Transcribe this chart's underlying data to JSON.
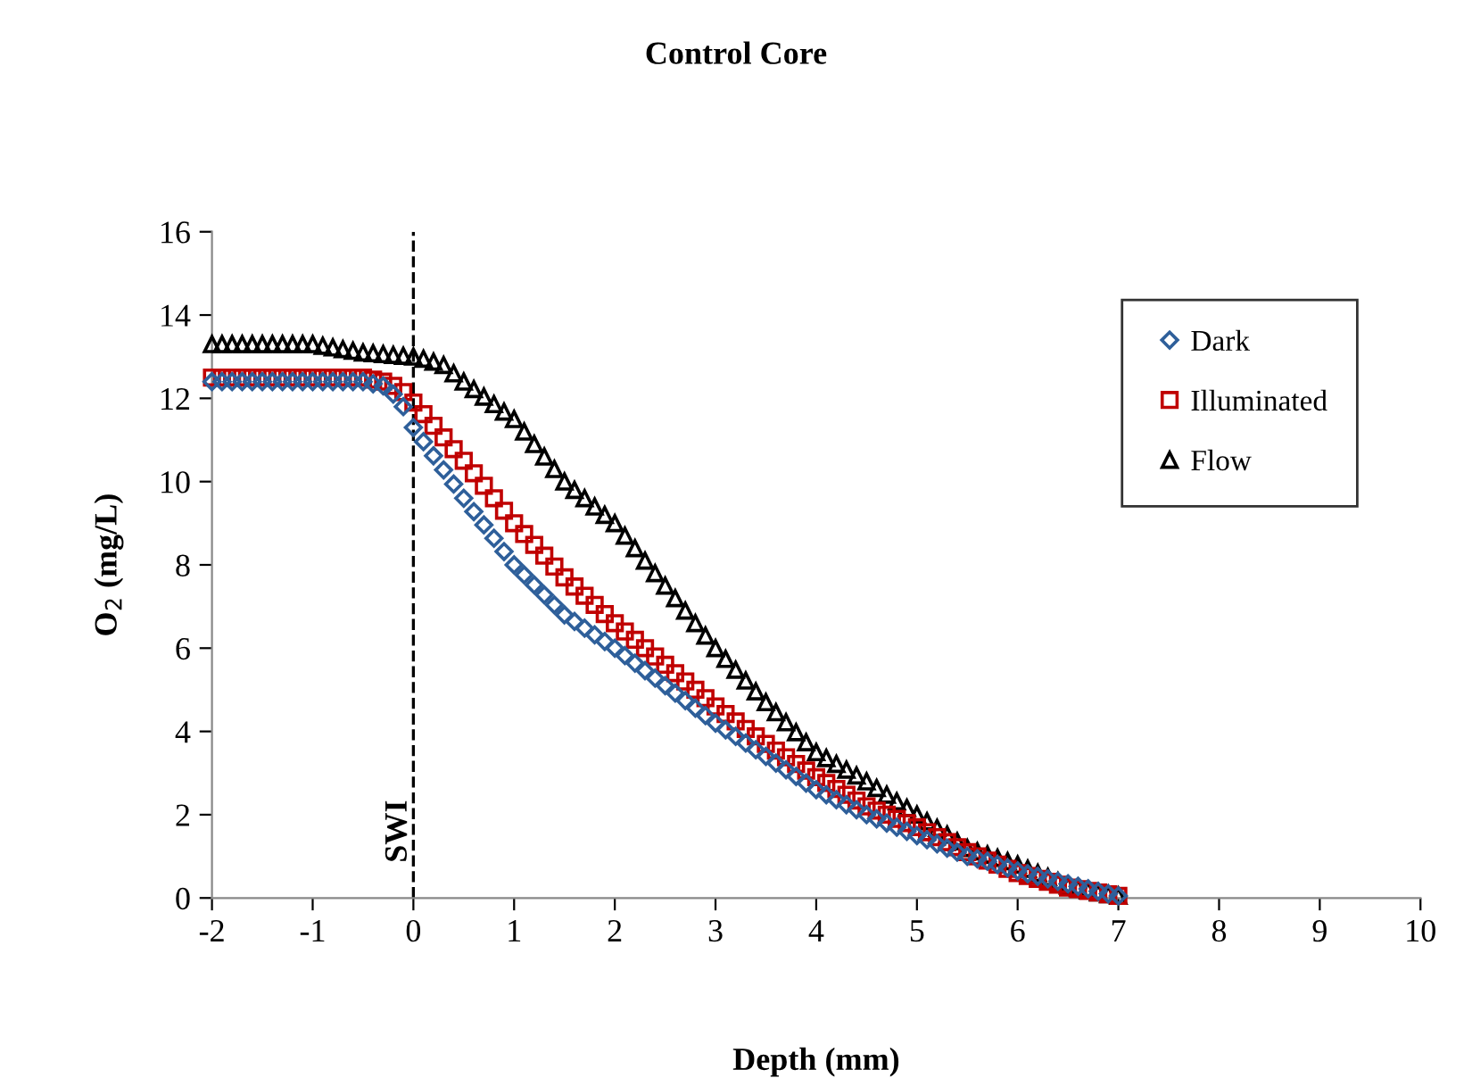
{
  "chart_data": {
    "type": "scatter",
    "title": "Control Core",
    "xlabel": "Depth (mm)",
    "ylabel": "O$_{2}$ (mg/L)",
    "x": [
      -2.0,
      -1.9,
      -1.8,
      -1.7,
      -1.6,
      -1.5,
      -1.4,
      -1.3,
      -1.2,
      -1.1,
      -1.0,
      -0.9,
      -0.8,
      -0.7,
      -0.6,
      -0.5,
      -0.4,
      -0.3,
      -0.2,
      -0.1,
      0.0,
      0.1,
      0.2,
      0.3,
      0.4,
      0.5,
      0.6,
      0.7,
      0.8,
      0.9,
      1.0,
      1.1,
      1.2,
      1.3,
      1.4,
      1.5,
      1.6,
      1.7,
      1.8,
      1.9,
      2.0,
      2.1,
      2.2,
      2.3,
      2.4,
      2.5,
      2.6,
      2.7,
      2.8,
      2.9,
      3.0,
      3.1,
      3.2,
      3.3,
      3.4,
      3.5,
      3.6,
      3.7,
      3.8,
      3.9,
      4.0,
      4.1,
      4.2,
      4.3,
      4.4,
      4.5,
      4.6,
      4.7,
      4.8,
      4.9,
      5.0,
      5.1,
      5.2,
      5.3,
      5.4,
      5.5,
      5.6,
      5.7,
      5.8,
      5.9,
      6.0,
      6.1,
      6.2,
      6.3,
      6.4,
      6.5,
      6.6,
      6.7,
      6.8,
      6.9,
      7.0
    ],
    "series": [
      {
        "name": "Dark",
        "color": "#2e5f9a",
        "marker": "diamond",
        "values": [
          12.4,
          12.4,
          12.4,
          12.4,
          12.4,
          12.4,
          12.4,
          12.4,
          12.4,
          12.4,
          12.4,
          12.4,
          12.4,
          12.4,
          12.4,
          12.4,
          12.35,
          12.3,
          12.1,
          11.8,
          11.3,
          10.96,
          10.62,
          10.28,
          9.94,
          9.6,
          9.28,
          8.96,
          8.64,
          8.32,
          8.0,
          7.76,
          7.52,
          7.28,
          7.04,
          6.8,
          6.64,
          6.48,
          6.32,
          6.16,
          6.0,
          5.82,
          5.64,
          5.46,
          5.28,
          5.1,
          4.92,
          4.74,
          4.56,
          4.38,
          4.2,
          4.04,
          3.88,
          3.72,
          3.56,
          3.4,
          3.24,
          3.08,
          2.92,
          2.76,
          2.6,
          2.48,
          2.36,
          2.24,
          2.12,
          2.0,
          1.9,
          1.8,
          1.7,
          1.6,
          1.5,
          1.4,
          1.3,
          1.2,
          1.1,
          1.0,
          0.94,
          0.88,
          0.8,
          0.72,
          0.65,
          0.58,
          0.52,
          0.46,
          0.4,
          0.34,
          0.28,
          0.22,
          0.16,
          0.1,
          0.05
        ]
      },
      {
        "name": "Illuminated",
        "color": "#c00000",
        "marker": "square",
        "values": [
          12.5,
          12.5,
          12.5,
          12.5,
          12.5,
          12.5,
          12.5,
          12.5,
          12.5,
          12.5,
          12.5,
          12.5,
          12.5,
          12.5,
          12.5,
          12.5,
          12.45,
          12.4,
          12.3,
          12.15,
          11.9,
          11.62,
          11.34,
          11.06,
          10.78,
          10.5,
          10.2,
          9.9,
          9.6,
          9.3,
          9.0,
          8.74,
          8.48,
          8.22,
          7.96,
          7.7,
          7.48,
          7.26,
          7.04,
          6.82,
          6.6,
          6.4,
          6.2,
          6.0,
          5.8,
          5.6,
          5.4,
          5.2,
          5.0,
          4.8,
          4.6,
          4.42,
          4.24,
          4.06,
          3.88,
          3.7,
          3.54,
          3.38,
          3.22,
          3.06,
          2.9,
          2.76,
          2.62,
          2.48,
          2.34,
          2.2,
          2.1,
          2.0,
          1.9,
          1.8,
          1.7,
          1.58,
          1.46,
          1.34,
          1.22,
          1.1,
          1.0,
          0.9,
          0.8,
          0.7,
          0.6,
          0.53,
          0.46,
          0.39,
          0.32,
          0.25,
          0.21,
          0.17,
          0.13,
          0.09,
          0.05
        ]
      },
      {
        "name": "Flow",
        "color": "#000000",
        "marker": "triangle",
        "values": [
          13.3,
          13.3,
          13.3,
          13.3,
          13.3,
          13.3,
          13.3,
          13.3,
          13.3,
          13.3,
          13.3,
          13.26,
          13.22,
          13.18,
          13.14,
          13.1,
          13.08,
          13.06,
          13.04,
          13.02,
          13.0,
          12.95,
          12.88,
          12.8,
          12.6,
          12.4,
          12.22,
          12.04,
          11.86,
          11.68,
          11.5,
          11.2,
          10.9,
          10.6,
          10.3,
          10.0,
          9.8,
          9.6,
          9.4,
          9.2,
          9.0,
          8.7,
          8.4,
          8.1,
          7.8,
          7.5,
          7.2,
          6.9,
          6.6,
          6.3,
          6.0,
          5.74,
          5.48,
          5.22,
          4.96,
          4.7,
          4.46,
          4.22,
          3.98,
          3.74,
          3.5,
          3.36,
          3.22,
          3.08,
          2.94,
          2.8,
          2.64,
          2.48,
          2.32,
          2.16,
          2.0,
          1.84,
          1.68,
          1.52,
          1.36,
          1.2,
          1.12,
          1.04,
          0.96,
          0.88,
          0.8,
          0.7,
          0.6,
          0.5,
          0.4,
          0.3,
          0.24,
          0.18,
          0.13,
          0.09,
          0.05
        ]
      }
    ],
    "xlim": [
      -2,
      10
    ],
    "xticks": [
      -2,
      -1,
      0,
      1,
      2,
      3,
      4,
      5,
      6,
      7,
      8,
      9,
      10
    ],
    "ylim": [
      0,
      16
    ],
    "yticks": [
      0,
      2,
      4,
      6,
      8,
      10,
      12,
      14,
      16
    ],
    "ref_lines": [
      {
        "axis": "x",
        "value": 0,
        "label": "SWI",
        "line_style": "dashed",
        "color": "#000000"
      }
    ],
    "legend": "top right"
  }
}
